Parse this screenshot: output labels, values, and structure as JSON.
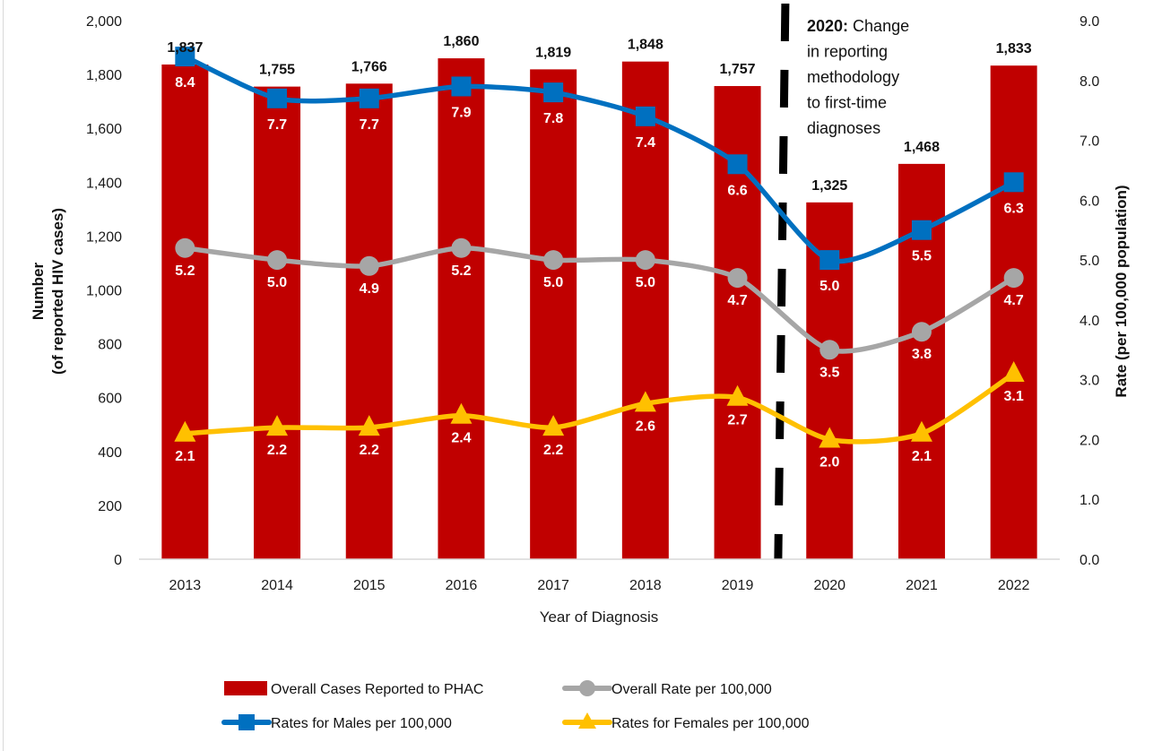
{
  "chart_data": {
    "type": "bar",
    "title": "",
    "categories": [
      "2013",
      "2014",
      "2015",
      "2016",
      "2017",
      "2018",
      "2019",
      "2020",
      "2021",
      "2022"
    ],
    "xlabel": "Year of Diagnosis",
    "ylabel": [
      "Number",
      "(of reported HIV cases)"
    ],
    "y2label": "Rate (per 100,000 population)",
    "ylim": [
      0,
      2000
    ],
    "y2lim": [
      0,
      9
    ],
    "yticks": [
      "0",
      "200",
      "400",
      "600",
      "800",
      "1,000",
      "1,200",
      "1,400",
      "1,600",
      "1,800",
      "2,000"
    ],
    "y2ticks": [
      "0.0",
      "1.0",
      "2.0",
      "3.0",
      "4.0",
      "5.0",
      "6.0",
      "7.0",
      "8.0",
      "9.0"
    ],
    "grid": false,
    "legend_position": "bottom",
    "series": [
      {
        "name": "Overall Cases Reported to PHAC",
        "type": "bar",
        "axis": "left",
        "color": "#C00000",
        "values": [
          1837,
          1755,
          1766,
          1860,
          1819,
          1848,
          1757,
          1325,
          1468,
          1833
        ],
        "labels": [
          "1,837",
          "1,755",
          "1,766",
          "1,860",
          "1,819",
          "1,848",
          "1,757",
          "1,325",
          "1,468",
          "1,833"
        ]
      },
      {
        "name": "Overall Rate per 100,000",
        "type": "line",
        "axis": "right",
        "color": "#A6A6A6",
        "marker": "circle",
        "values": [
          5.2,
          5.0,
          4.9,
          5.2,
          5.0,
          5.0,
          4.7,
          3.5,
          3.8,
          4.7
        ],
        "labels": [
          "5.2",
          "5.0",
          "4.9",
          "5.2",
          "5.0",
          "5.0",
          "4.7",
          "3.5",
          "3.8",
          "4.7"
        ]
      },
      {
        "name": "Rates for Males per 100,000",
        "type": "line",
        "axis": "right",
        "color": "#0070C0",
        "marker": "square",
        "values": [
          8.4,
          7.7,
          7.7,
          7.9,
          7.8,
          7.4,
          6.6,
          5.0,
          5.5,
          6.3
        ],
        "labels": [
          "8.4",
          "7.7",
          "7.7",
          "7.9",
          "7.8",
          "7.4",
          "6.6",
          "5.0",
          "5.5",
          "6.3"
        ]
      },
      {
        "name": "Rates for Females per 100,000",
        "type": "line",
        "axis": "right",
        "color": "#FFC000",
        "marker": "triangle",
        "values": [
          2.1,
          2.2,
          2.2,
          2.4,
          2.2,
          2.6,
          2.7,
          2.0,
          2.1,
          3.1
        ],
        "labels": [
          "2.1",
          "2.2",
          "2.2",
          "2.4",
          "2.2",
          "2.6",
          "2.7",
          "2.0",
          "2.1",
          "3.1"
        ]
      }
    ],
    "annotations": [
      {
        "type": "vertical-dashed-line",
        "between": [
          "2019",
          "2020"
        ],
        "color": "#000000",
        "text_bold": "2020:",
        "text_lines": [
          " Change",
          "in reporting",
          "methodology",
          "to first-time",
          "diagnoses"
        ]
      }
    ],
    "legend": [
      {
        "label": "Overall Cases Reported to PHAC",
        "symbol": "bar",
        "color": "#C00000"
      },
      {
        "label": "Overall Rate per 100,000",
        "symbol": "circle-line",
        "color": "#A6A6A6"
      },
      {
        "label": "Rates for Males per 100,000",
        "symbol": "square-line",
        "color": "#0070C0"
      },
      {
        "label": "Rates for Females per 100,000",
        "symbol": "triangle-line",
        "color": "#FFC000"
      }
    ]
  }
}
